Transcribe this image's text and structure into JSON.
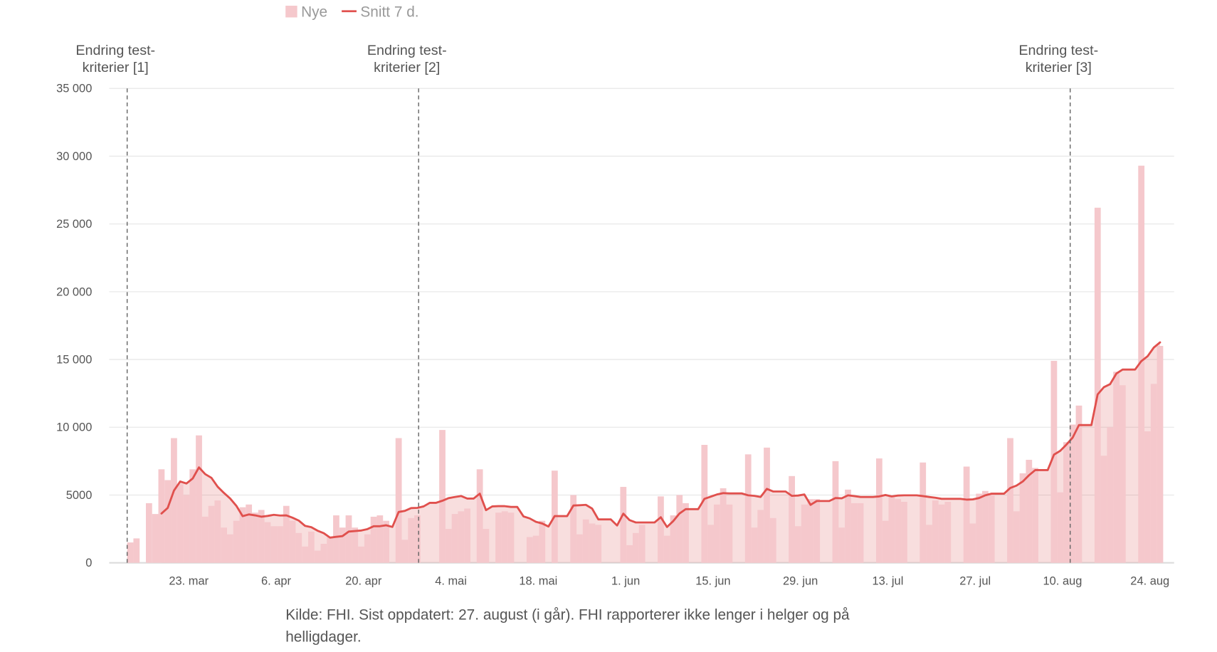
{
  "chart_data": {
    "type": "bar",
    "title": "",
    "xlabel": "",
    "ylabel": "",
    "ylim": [
      0,
      35000
    ],
    "grid": true,
    "start_date": "15. mar",
    "end_date": "27. aug",
    "legend": {
      "position": "top-left",
      "items": [
        {
          "label": "Nye",
          "kind": "bar"
        },
        {
          "label": "Snitt 7 d.",
          "kind": "line"
        }
      ]
    },
    "colors": {
      "bar": "#f5c8cc",
      "line": "#e0504d",
      "area": "#dc5a5a",
      "grid": "#e8e8e8",
      "text": "#555555",
      "annotation": "#666666"
    },
    "y_ticks": [
      {
        "value": 0,
        "label": "0"
      },
      {
        "value": 5000,
        "label": "5000"
      },
      {
        "value": 10000,
        "label": "10 000"
      },
      {
        "value": 15000,
        "label": "15 000"
      },
      {
        "value": 20000,
        "label": "20 000"
      },
      {
        "value": 25000,
        "label": "25 000"
      },
      {
        "value": 30000,
        "label": "30 000"
      },
      {
        "value": 35000,
        "label": "35 000"
      }
    ],
    "x_ticks": [
      {
        "day": 8,
        "label": "23. mar"
      },
      {
        "day": 22,
        "label": "6. apr"
      },
      {
        "day": 36,
        "label": "20. apr"
      },
      {
        "day": 50,
        "label": "4. mai"
      },
      {
        "day": 64,
        "label": "18. mai"
      },
      {
        "day": 78,
        "label": "1. jun"
      },
      {
        "day": 92,
        "label": "15. jun"
      },
      {
        "day": 106,
        "label": "29. jun"
      },
      {
        "day": 120,
        "label": "13. jul"
      },
      {
        "day": 134,
        "label": "27. jul"
      },
      {
        "day": 148,
        "label": "10. aug"
      },
      {
        "day": 162,
        "label": "24. aug"
      }
    ],
    "annotations": [
      {
        "day": -0.5,
        "line1": "Endring test-",
        "line2": "kriterier [1]"
      },
      {
        "day": 46.2,
        "line1": "Endring test-",
        "line2": "kriterier [2]"
      },
      {
        "day": 150.6,
        "line1": "Endring test-",
        "line2": "kriterier [3]"
      }
    ],
    "series": [
      {
        "name": "Nye",
        "type": "bar",
        "values": [
          1500,
          1800,
          null,
          4400,
          3600,
          6900,
          6100,
          9200,
          5800,
          5000,
          6900,
          9400,
          3400,
          4200,
          4600,
          2600,
          2100,
          3100,
          4100,
          4300,
          3700,
          3900,
          3000,
          2700,
          2700,
          4200,
          3100,
          2200,
          1200,
          2300,
          900,
          1400,
          1900,
          3500,
          2600,
          3500,
          2600,
          1200,
          2100,
          3400,
          3500,
          3100,
          null,
          9200,
          1700,
          3300,
          3500,
          null,
          null,
          null,
          9800,
          2500,
          3600,
          3800,
          4000,
          null,
          6900,
          2500,
          null,
          3700,
          3800,
          3700,
          null,
          null,
          1900,
          2000,
          3100,
          null,
          6800,
          null,
          null,
          5000,
          2100,
          3200,
          2900,
          2800,
          null,
          null,
          null,
          5600,
          1300,
          2200,
          2800,
          null,
          null,
          4900,
          2000,
          3500,
          5000,
          4400,
          null,
          null,
          8700,
          2800,
          4300,
          5500,
          4300,
          null,
          null,
          8000,
          2600,
          3900,
          8500,
          3300,
          null,
          null,
          6400,
          2700,
          4300,
          4700,
          4700,
          null,
          null,
          7500,
          2600,
          5400,
          4400,
          4400,
          null,
          null,
          7700,
          3100,
          4900,
          4700,
          4500,
          null,
          null,
          7400,
          2800,
          4600,
          4300,
          4500,
          null,
          null,
          7100,
          2900,
          5100,
          5300,
          5100,
          null,
          null,
          9200,
          3800,
          6600,
          7600,
          7000,
          null,
          null,
          14900,
          5200,
          8900,
          10200,
          11600,
          null,
          null,
          26200,
          7900,
          10000,
          14100,
          13100,
          null,
          null,
          29300,
          9700,
          13200,
          16000
        ]
      },
      {
        "name": "Snitt 7 d.",
        "type": "line",
        "method": "7-day rolling mean of reported days",
        "starts_at_day": 5
      }
    ]
  },
  "footnote_lines": [
    "Kilde: FHI. Sist oppdatert: 27. august (i går). FHI rapporterer ikke lenger i helger og på",
    "helligdager."
  ]
}
